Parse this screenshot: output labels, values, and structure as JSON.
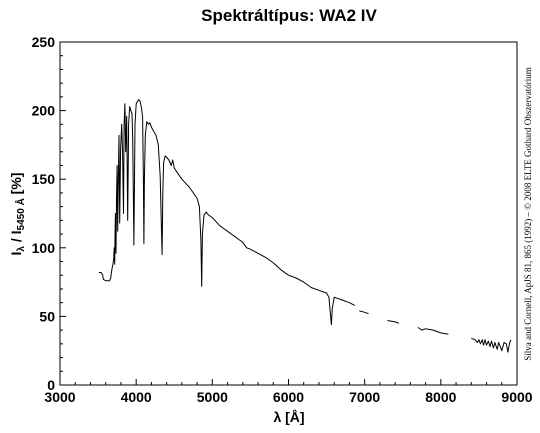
{
  "chart_data": {
    "type": "line",
    "title": "Spektráltípus: WA2 IV",
    "xlabel": "λ [Å]",
    "ylabel": {
      "main": "I",
      "sub1": "λ",
      "mid": " / I",
      "sub2": "5450 Å",
      "end": " [%]"
    },
    "xlim": [
      3000,
      9000
    ],
    "ylim": [
      0,
      250
    ],
    "xticks": [
      3000,
      4000,
      5000,
      6000,
      7000,
      8000,
      9000
    ],
    "yticks": [
      0,
      50,
      100,
      150,
      200,
      250
    ],
    "grid": false,
    "credit": "Silva and Cornell, ApJS 81, 865 (1992) – © 2008 ELTE Gothard Obszervatórium",
    "series": [
      {
        "color": "#000000",
        "segments": [
          [
            [
              3510,
              82
            ],
            [
              3540,
              82
            ],
            [
              3560,
              80
            ],
            [
              3570,
              77
            ],
            [
              3600,
              76
            ],
            [
              3630,
              76
            ],
            [
              3650,
              76
            ],
            [
              3665,
              78
            ],
            [
              3680,
              84
            ],
            [
              3695,
              88
            ],
            [
              3705,
              92
            ],
            [
              3712,
              100
            ],
            [
              3718,
              88
            ],
            [
              3722,
              108
            ],
            [
              3728,
              125
            ],
            [
              3735,
              96
            ],
            [
              3742,
              135
            ],
            [
              3750,
              160
            ],
            [
              3758,
              112
            ],
            [
              3766,
              150
            ],
            [
              3775,
              182
            ],
            [
              3784,
              118
            ],
            [
              3795,
              172
            ],
            [
              3810,
              190
            ],
            [
              3822,
              168
            ],
            [
              3834,
              125
            ],
            [
              3842,
              190
            ],
            [
              3852,
              205
            ],
            [
              3862,
              170
            ],
            [
              3876,
              196
            ],
            [
              3889,
              120
            ],
            [
              3900,
              190
            ],
            [
              3915,
              203
            ],
            [
              3930,
              200
            ],
            [
              3945,
              198
            ],
            [
              3955,
              180
            ],
            [
              3970,
              102
            ],
            [
              3985,
              190
            ],
            [
              4000,
              205
            ],
            [
              4030,
              208
            ],
            [
              4050,
              207
            ],
            [
              4070,
              202
            ],
            [
              4085,
              195
            ],
            [
              4095,
              150
            ],
            [
              4101,
              103
            ],
            [
              4108,
              150
            ],
            [
              4120,
              182
            ],
            [
              4140,
              192
            ],
            [
              4160,
              190
            ],
            [
              4180,
              191
            ],
            [
              4200,
              188
            ],
            [
              4230,
              185
            ],
            [
              4260,
              182
            ],
            [
              4290,
              175
            ],
            [
              4315,
              152
            ],
            [
              4330,
              118
            ],
            [
              4340,
              95
            ],
            [
              4350,
              140
            ],
            [
              4360,
              162
            ],
            [
              4380,
              167
            ],
            [
              4400,
              166
            ],
            [
              4430,
              164
            ],
            [
              4460,
              160
            ],
            [
              4480,
              164
            ],
            [
              4500,
              158
            ],
            [
              4550,
              154
            ],
            [
              4600,
              150
            ],
            [
              4650,
              147
            ],
            [
              4700,
              144
            ],
            [
              4750,
              140
            ],
            [
              4800,
              136
            ],
            [
              4830,
              130
            ],
            [
              4850,
              105
            ],
            [
              4861,
              72
            ],
            [
              4870,
              110
            ],
            [
              4890,
              124
            ],
            [
              4920,
              126
            ],
            [
              4950,
              124
            ],
            [
              5000,
              122
            ],
            [
              5050,
              119
            ],
            [
              5100,
              116
            ],
            [
              5150,
              114
            ],
            [
              5200,
              112
            ],
            [
              5250,
              110
            ],
            [
              5300,
              108
            ],
            [
              5350,
              106
            ],
            [
              5400,
              104
            ],
            [
              5450,
              100
            ],
            [
              5500,
              99
            ],
            [
              5600,
              96
            ],
            [
              5700,
              93
            ],
            [
              5800,
              89
            ],
            [
              5900,
              84
            ],
            [
              6000,
              80
            ],
            [
              6100,
              78
            ],
            [
              6200,
              75
            ],
            [
              6300,
              71
            ],
            [
              6400,
              69
            ],
            [
              6500,
              67
            ],
            [
              6530,
              64
            ],
            [
              6550,
              52
            ],
            [
              6563,
              44
            ],
            [
              6575,
              56
            ],
            [
              6600,
              64
            ],
            [
              6700,
              62
            ],
            [
              6800,
              60
            ],
            [
              6870,
              58
            ]
          ],
          [
            [
              6930,
              54
            ],
            [
              7000,
              53
            ],
            [
              7050,
              52
            ]
          ],
          [
            [
              7300,
              47
            ],
            [
              7400,
              46
            ],
            [
              7450,
              45
            ]
          ],
          [
            [
              7700,
              42
            ],
            [
              7750,
              40
            ],
            [
              7800,
              41
            ],
            [
              7900,
              40
            ],
            [
              8000,
              38
            ],
            [
              8100,
              37
            ]
          ],
          [
            [
              8400,
              34
            ],
            [
              8450,
              33
            ],
            [
              8480,
              31
            ],
            [
              8500,
              33
            ],
            [
              8520,
              30
            ],
            [
              8545,
              33
            ],
            [
              8560,
              29
            ],
            [
              8580,
              33
            ],
            [
              8600,
              29
            ],
            [
              8625,
              32
            ],
            [
              8645,
              28
            ],
            [
              8665,
              32
            ],
            [
              8690,
              27
            ],
            [
              8710,
              31
            ],
            [
              8740,
              26
            ],
            [
              8760,
              31
            ],
            [
              8800,
              25
            ],
            [
              8830,
              31
            ],
            [
              8860,
              30
            ],
            [
              8880,
              24
            ],
            [
              8900,
              30
            ],
            [
              8920,
              33
            ]
          ]
        ]
      }
    ]
  }
}
